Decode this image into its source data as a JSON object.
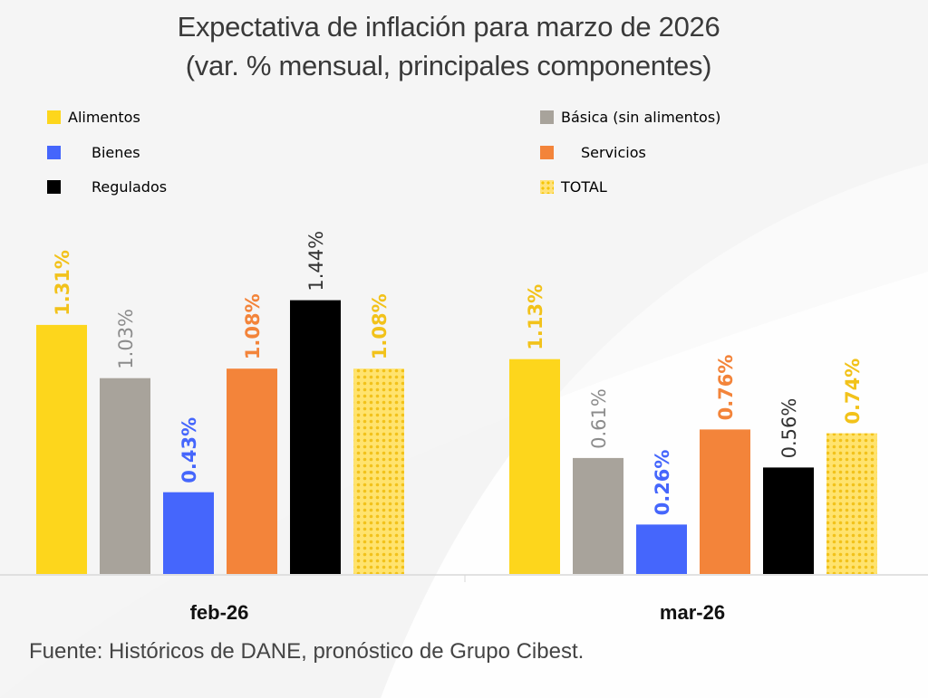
{
  "title_line1": "Expectativa de inflación para marzo de 2026",
  "title_line2": "(var. % mensual, principales componentes)",
  "source": "Fuente: Históricos de DANE, pronóstico de Grupo Cibest.",
  "legend": [
    {
      "label": "Alimentos",
      "color": "#fdd61c",
      "pattern": false
    },
    {
      "label": "Bienes",
      "color": "#4566fc",
      "pattern": false
    },
    {
      "label": "Regulados",
      "color": "#000000",
      "pattern": false
    },
    {
      "label": "Básica (sin alimentos)",
      "color": "#a8a39b",
      "pattern": false
    },
    {
      "label": "Servicios",
      "color": "#f3843a",
      "pattern": false
    },
    {
      "label": "TOTAL",
      "color": "#ffe066",
      "pattern": true
    }
  ],
  "chart_data": {
    "type": "bar",
    "title": "Expectativa de inflación para marzo de 2026 (var. % mensual, principales componentes)",
    "xlabel": "",
    "ylabel": "",
    "categories": [
      "feb-26",
      "mar-26"
    ],
    "ylim": [
      0,
      1.6
    ],
    "grid": false,
    "legend_position": "top",
    "series": [
      {
        "name": "Alimentos",
        "color": "#fdd61c",
        "label_color": "#f2c21a",
        "values": [
          1.31,
          1.13
        ],
        "labels": [
          "1.31%",
          "1.13%"
        ]
      },
      {
        "name": "Básica (sin alimentos)",
        "color": "#a8a39b",
        "label_color": "#8c8c8c",
        "values": [
          1.03,
          0.61
        ],
        "labels": [
          "1.03%",
          "0.61%"
        ]
      },
      {
        "name": "Bienes",
        "color": "#4566fc",
        "label_color": "#4566fc",
        "values": [
          0.43,
          0.26
        ],
        "labels": [
          "0.43%",
          "0.26%"
        ]
      },
      {
        "name": "Servicios",
        "color": "#f3843a",
        "label_color": "#f3843a",
        "values": [
          1.08,
          0.76
        ],
        "labels": [
          "1.08%",
          "0.76%"
        ]
      },
      {
        "name": "Regulados",
        "color": "#000000",
        "label_color": "#333333",
        "values": [
          1.44,
          0.56
        ],
        "labels": [
          "1.44%",
          "0.56%"
        ]
      },
      {
        "name": "TOTAL",
        "color": "#ffe066",
        "label_color": "#f2c21a",
        "pattern": true,
        "values": [
          1.08,
          0.74
        ],
        "labels": [
          "1.08%",
          "0.74%"
        ]
      }
    ]
  }
}
